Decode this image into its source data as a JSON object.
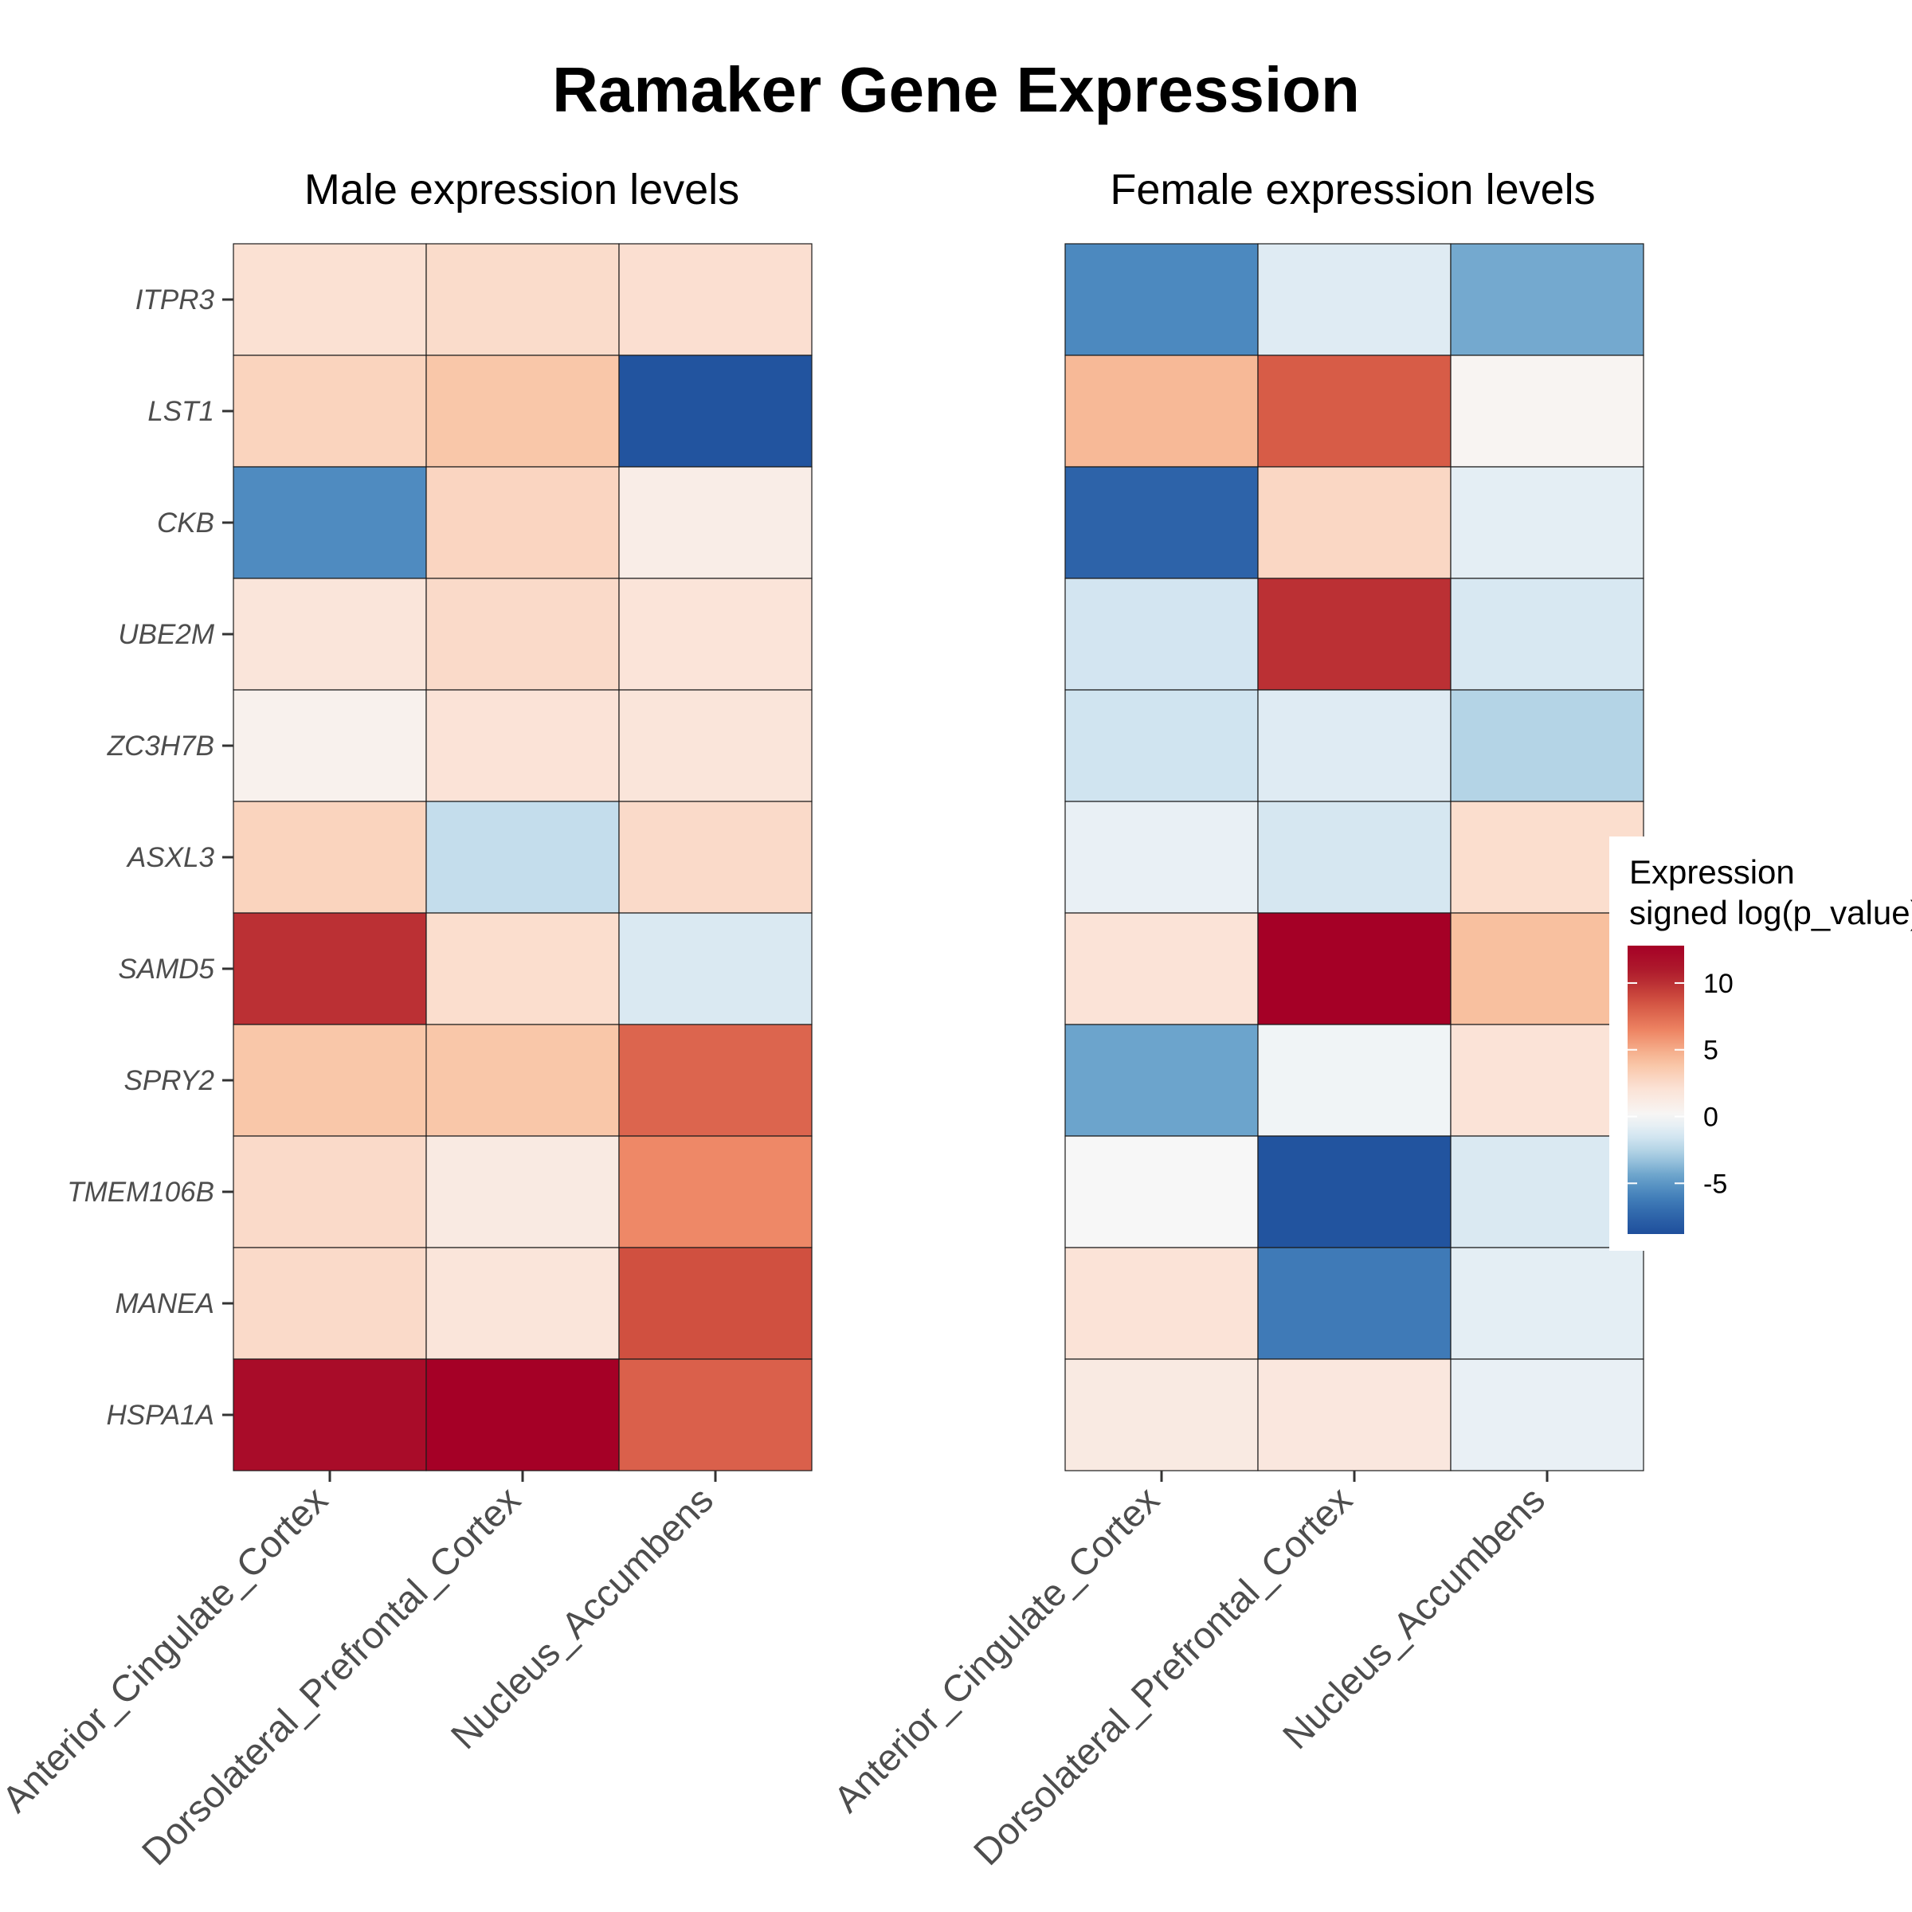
{
  "chart_data": {
    "type": "heatmap",
    "title": "Ramaker Gene Expression",
    "genes": [
      "ITPR3",
      "LST1",
      "CKB",
      "UBE2M",
      "ZC3H7B",
      "ASXL3",
      "SAMD5",
      "SPRY2",
      "TMEM106B",
      "MANEA",
      "HSPA1A"
    ],
    "regions": [
      "Anterior_Cingulate_Cortex",
      "Dorsolateral_Prefrontal_Cortex",
      "Nucleus_Accumbens"
    ],
    "panels": [
      {
        "title": "Male expression levels",
        "values": [
          [
            2.2,
            2.5,
            2.3
          ],
          [
            3.0,
            3.8,
            -8.5
          ],
          [
            -5.5,
            2.9,
            1.0
          ],
          [
            1.8,
            2.6,
            1.9
          ],
          [
            0.6,
            2.0,
            1.8
          ],
          [
            3.0,
            -2.0,
            2.6
          ],
          [
            10.0,
            2.4,
            -1.2
          ],
          [
            3.8,
            3.8,
            7.8
          ],
          [
            2.6,
            1.3,
            6.3
          ],
          [
            2.6,
            1.8,
            8.7
          ],
          [
            12.0,
            12.8,
            8.0
          ]
        ]
      },
      {
        "title": "Female expression levels",
        "values": [
          [
            -5.6,
            -1.0,
            -4.2
          ],
          [
            4.5,
            8.2,
            0.3
          ],
          [
            -7.5,
            2.8,
            -0.8
          ],
          [
            -1.5,
            10.0,
            -1.3
          ],
          [
            -1.6,
            -1.0,
            -2.5
          ],
          [
            -0.6,
            -1.4,
            2.4
          ],
          [
            2.0,
            12.8,
            4.2
          ],
          [
            -4.4,
            -0.3,
            2.0
          ],
          [
            0.0,
            -8.5,
            -1.2
          ],
          [
            2.0,
            -6.3,
            -0.8
          ],
          [
            1.3,
            1.6,
            -0.6
          ]
        ]
      }
    ],
    "legend": {
      "title_line1": "Expression",
      "title_line2": "signed log(p_value)",
      "ticks": [
        "10",
        "5",
        "0",
        "-5"
      ],
      "tick_values": [
        10,
        5,
        0,
        -5
      ],
      "range": [
        -8.8,
        12.8
      ],
      "position": "right"
    },
    "colors": {
      "low": "#1d4e9a",
      "mid": "#f7f7f7",
      "high": "#a50026",
      "palette": [
        "#1f4f9c",
        "#2f66ab",
        "#4583bc",
        "#6ca4cc",
        "#a7cce2",
        "#d4e6f1",
        "#f7f7f7",
        "#fbe2d5",
        "#f8bf9d",
        "#ee8564",
        "#d35442",
        "#b01f2d",
        "#a50026"
      ]
    }
  }
}
